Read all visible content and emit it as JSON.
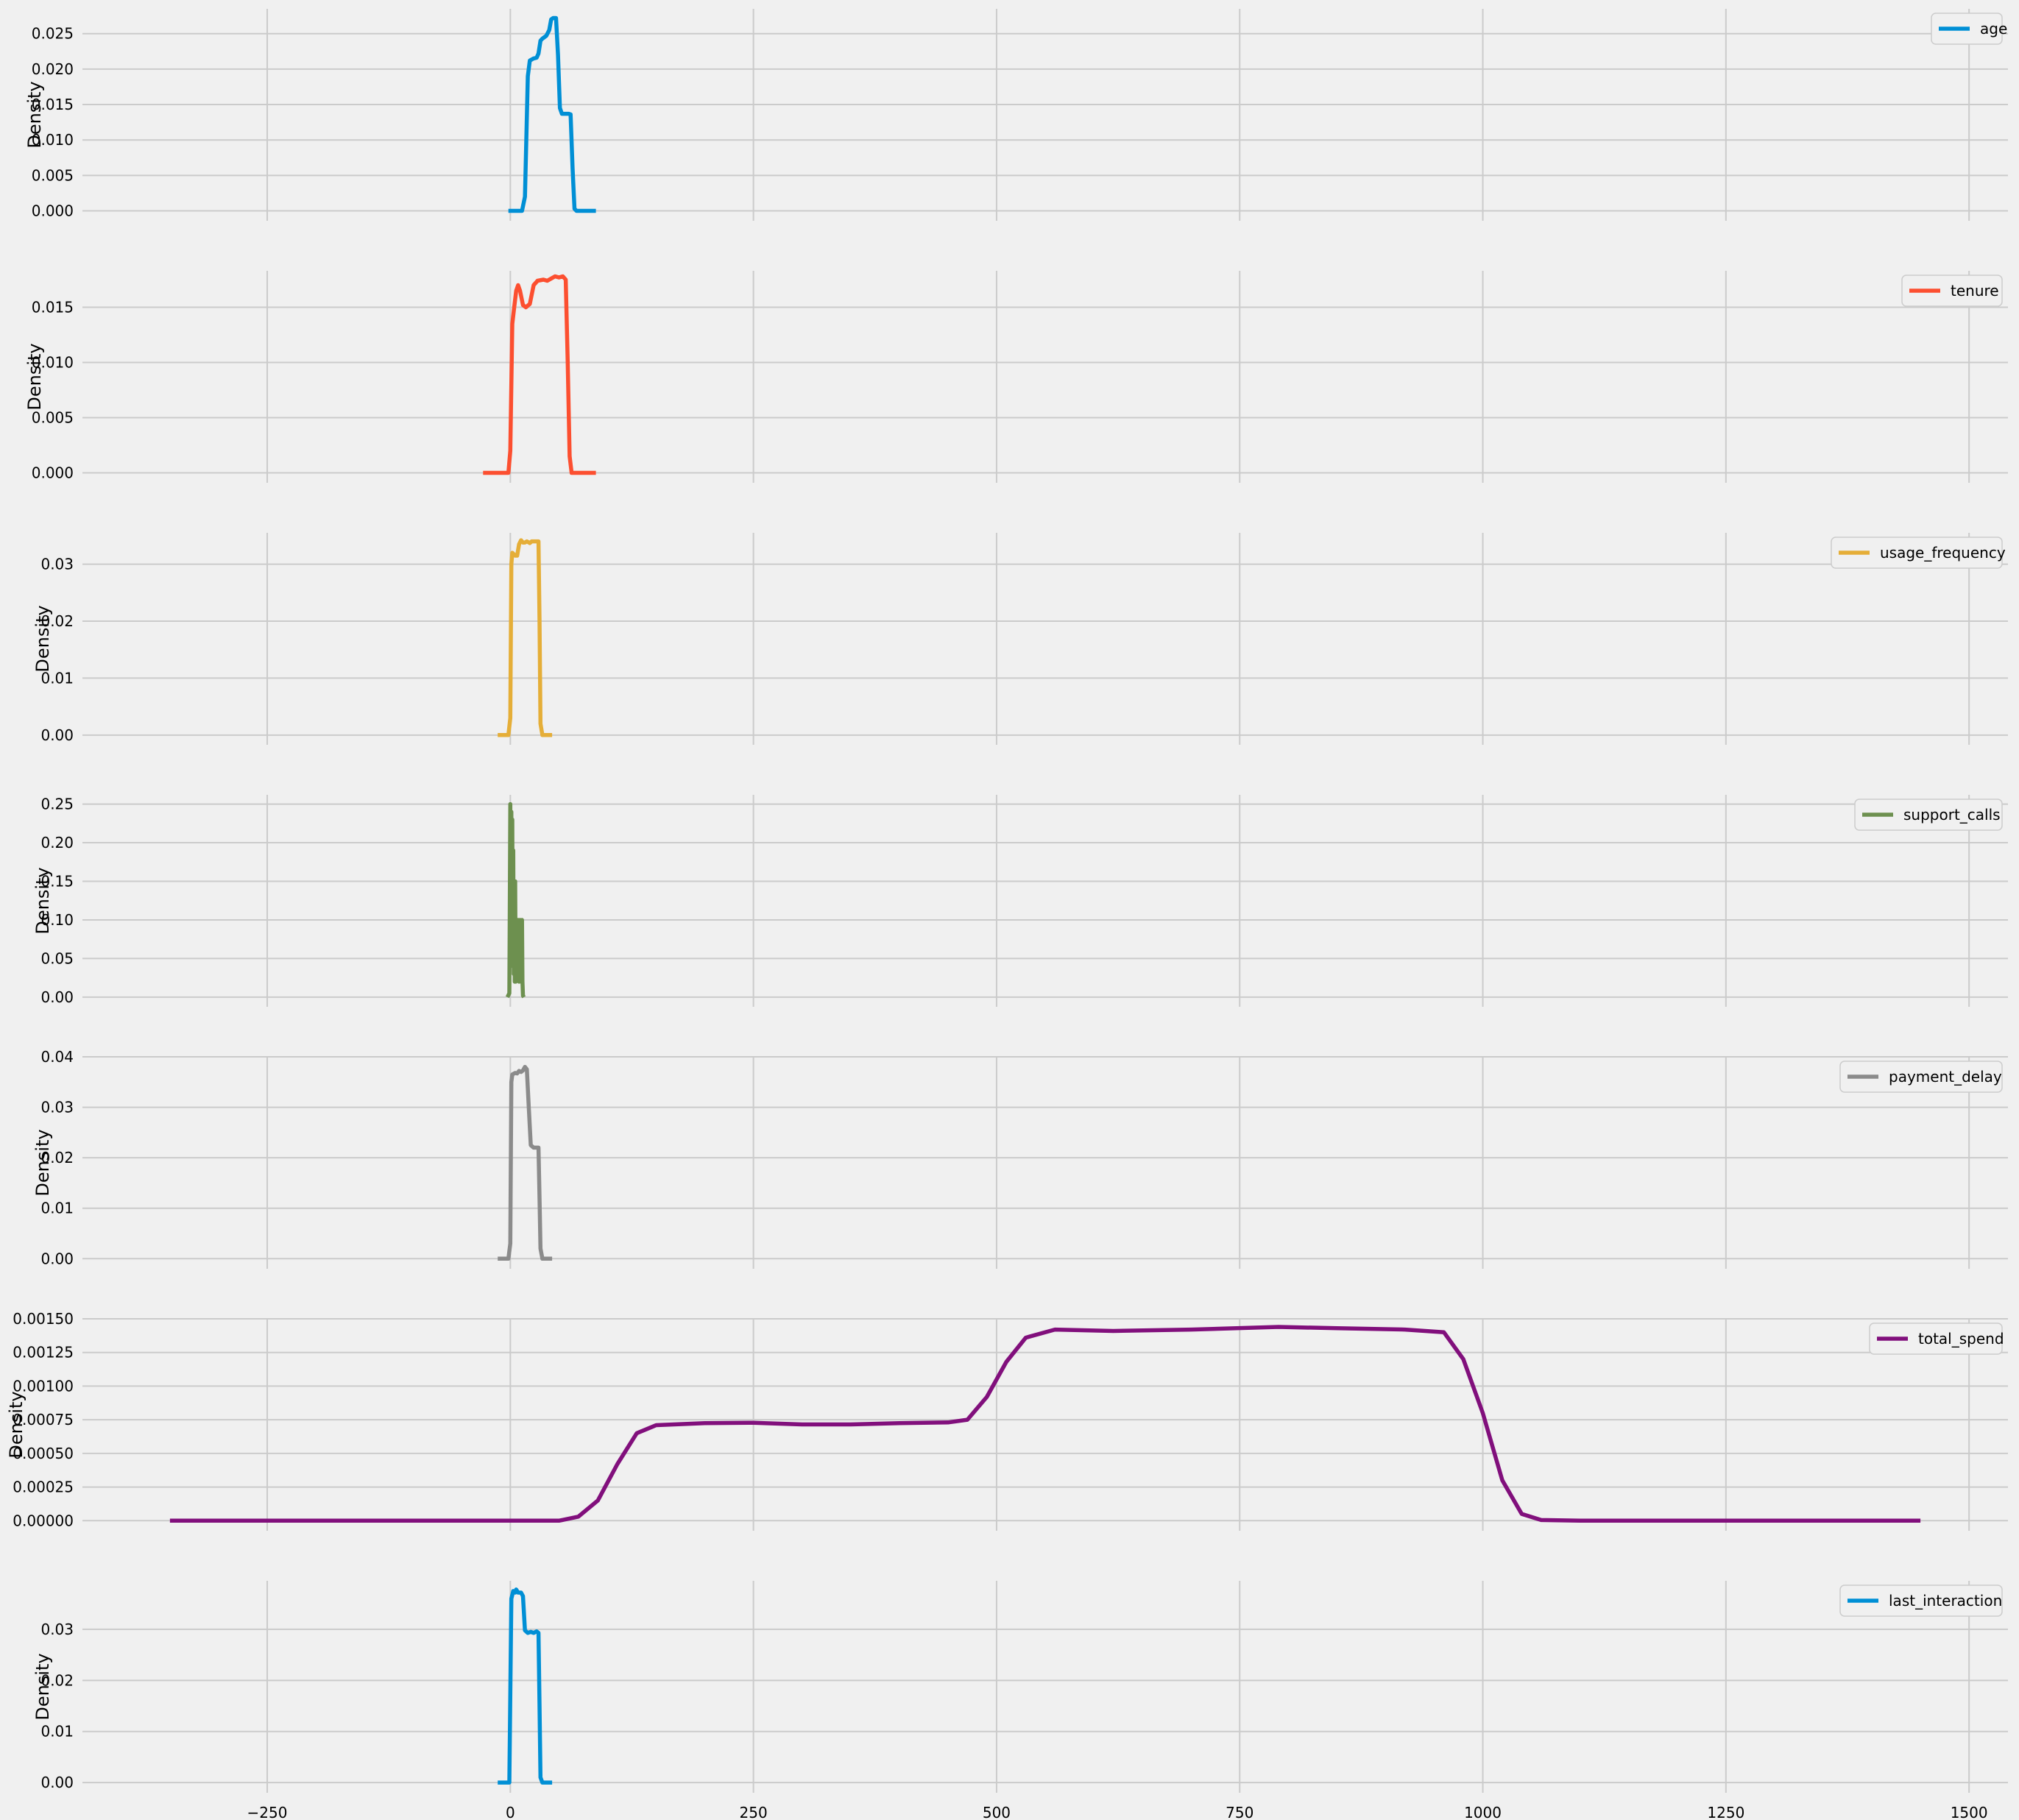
{
  "chart_data": {
    "type": "line",
    "figure_style": "fivethirtyeight",
    "grid": true,
    "legend_placement": "upper right",
    "shared_x": {
      "xlim": [
        -440,
        1540
      ],
      "ticks": [
        -250,
        0,
        250,
        500,
        750,
        1000,
        1250,
        1500
      ],
      "tick_labels": [
        "−250",
        "0",
        "250",
        "500",
        "750",
        "1000",
        "1250",
        "1500"
      ]
    },
    "panels": [
      {
        "name": "age",
        "color": "#008fd5",
        "ylabel": "Density",
        "ylim": [
          -0.0014,
          0.0285
        ],
        "yticks": [
          0.0,
          0.005,
          0.01,
          0.015,
          0.02,
          0.025
        ],
        "ytick_labels": [
          "0.000",
          "0.005",
          "0.010",
          "0.015",
          "0.020",
          "0.025"
        ],
        "points": [
          [
            -2,
            0
          ],
          [
            12,
            0
          ],
          [
            15,
            0.002
          ],
          [
            18,
            0.019
          ],
          [
            20,
            0.0212
          ],
          [
            24,
            0.0215
          ],
          [
            27,
            0.0216
          ],
          [
            29,
            0.0222
          ],
          [
            31,
            0.024
          ],
          [
            33,
            0.0243
          ],
          [
            37,
            0.0247
          ],
          [
            40,
            0.0255
          ],
          [
            42,
            0.027
          ],
          [
            44,
            0.0272
          ],
          [
            47,
            0.0272
          ],
          [
            49,
            0.022
          ],
          [
            51,
            0.0145
          ],
          [
            53,
            0.0137
          ],
          [
            57,
            0.0137
          ],
          [
            60,
            0.0137
          ],
          [
            62,
            0.0136
          ],
          [
            64,
            0.006
          ],
          [
            66,
            0.0003
          ],
          [
            68,
            0
          ],
          [
            88,
            0
          ]
        ]
      },
      {
        "name": "tenure",
        "color": "#fc4f30",
        "ylabel": "Density",
        "ylim": [
          -0.0009,
          0.0183
        ],
        "yticks": [
          0.0,
          0.005,
          0.01,
          0.015
        ],
        "ytick_labels": [
          "0.000",
          "0.005",
          "0.010",
          "0.015"
        ],
        "points": [
          [
            -28,
            0
          ],
          [
            -2,
            0
          ],
          [
            0,
            0.002
          ],
          [
            2,
            0.0135
          ],
          [
            4,
            0.015
          ],
          [
            6,
            0.0165
          ],
          [
            8,
            0.017
          ],
          [
            10,
            0.0165
          ],
          [
            13,
            0.0152
          ],
          [
            16,
            0.015
          ],
          [
            20,
            0.0153
          ],
          [
            24,
            0.017
          ],
          [
            28,
            0.0174
          ],
          [
            34,
            0.0175
          ],
          [
            38,
            0.0174
          ],
          [
            42,
            0.0176
          ],
          [
            46,
            0.0178
          ],
          [
            50,
            0.0177
          ],
          [
            54,
            0.0178
          ],
          [
            57,
            0.0175
          ],
          [
            59,
            0.01
          ],
          [
            61,
            0.0015
          ],
          [
            63,
            0
          ],
          [
            88,
            0
          ]
        ]
      },
      {
        "name": "usage_frequency",
        "color": "#e5ae38",
        "ylabel": "Density",
        "ylim": [
          -0.0017,
          0.0355
        ],
        "yticks": [
          0.0,
          0.01,
          0.02,
          0.03
        ],
        "ytick_labels": [
          "0.00",
          "0.01",
          "0.02",
          "0.03"
        ],
        "points": [
          [
            -13,
            0
          ],
          [
            -2,
            0
          ],
          [
            0,
            0.003
          ],
          [
            1,
            0.03
          ],
          [
            2,
            0.032
          ],
          [
            5,
            0.0315
          ],
          [
            7,
            0.0315
          ],
          [
            9,
            0.0335
          ],
          [
            11,
            0.0342
          ],
          [
            13,
            0.0338
          ],
          [
            15,
            0.0338
          ],
          [
            17,
            0.034
          ],
          [
            20,
            0.0337
          ],
          [
            22,
            0.034
          ],
          [
            25,
            0.034
          ],
          [
            29,
            0.034
          ],
          [
            30,
            0.02
          ],
          [
            31,
            0.002
          ],
          [
            33,
            0
          ],
          [
            43,
            0
          ]
        ]
      },
      {
        "name": "support_calls",
        "color": "#6d904f",
        "ylabel": "Density",
        "ylim": [
          -0.0125,
          0.262
        ],
        "yticks": [
          0.0,
          0.05,
          0.1,
          0.15,
          0.2,
          0.25
        ],
        "ytick_labels": [
          "0.00",
          "0.05",
          "0.10",
          "0.15",
          "0.20",
          "0.25"
        ],
        "points": [
          [
            -3,
            0
          ],
          [
            -1,
            0.005
          ],
          [
            0,
            0.25
          ],
          [
            0.5,
            0.1
          ],
          [
            1,
            0.24
          ],
          [
            1.5,
            0.08
          ],
          [
            2,
            0.23
          ],
          [
            2.5,
            0.04
          ],
          [
            3,
            0.19
          ],
          [
            3.5,
            0.03
          ],
          [
            4,
            0.15
          ],
          [
            4.5,
            0.02
          ],
          [
            5,
            0.15
          ],
          [
            5.5,
            0.02
          ],
          [
            6,
            0.1
          ],
          [
            7,
            0.03
          ],
          [
            8,
            0.1
          ],
          [
            9,
            0.02
          ],
          [
            10,
            0.1
          ],
          [
            11,
            0.02
          ],
          [
            12,
            0.1
          ],
          [
            12.5,
            0.02
          ],
          [
            13,
            0.002
          ],
          [
            14,
            0
          ]
        ]
      },
      {
        "name": "payment_delay",
        "color": "#8b8b8b",
        "ylabel": "Density",
        "ylim": [
          -0.002,
          0.04
        ],
        "yticks": [
          0.0,
          0.01,
          0.02,
          0.03,
          0.04
        ],
        "ytick_labels": [
          "0.00",
          "0.01",
          "0.02",
          "0.03",
          "0.04"
        ],
        "points": [
          [
            -13,
            0
          ],
          [
            -2,
            0
          ],
          [
            0,
            0.003
          ],
          [
            1,
            0.035
          ],
          [
            2,
            0.0365
          ],
          [
            5,
            0.0368
          ],
          [
            7,
            0.0367
          ],
          [
            9,
            0.0372
          ],
          [
            11,
            0.037
          ],
          [
            13,
            0.0373
          ],
          [
            15,
            0.038
          ],
          [
            17,
            0.0375
          ],
          [
            19,
            0.03
          ],
          [
            21,
            0.0225
          ],
          [
            24,
            0.022
          ],
          [
            27,
            0.022
          ],
          [
            29,
            0.022
          ],
          [
            30,
            0.012
          ],
          [
            31,
            0.002
          ],
          [
            33,
            0
          ],
          [
            43,
            0
          ]
        ]
      },
      {
        "name": "total_spend",
        "color": "#810f7c",
        "ylabel": "Density",
        "ylim": [
          -7.5e-05,
          0.0015
        ],
        "yticks": [
          0.0,
          0.00025,
          0.0005,
          0.00075,
          0.001,
          0.00125,
          0.0015
        ],
        "ytick_labels": [
          "0.00000",
          "0.00025",
          "0.00050",
          "0.00075",
          "0.00100",
          "0.00125",
          "0.00150"
        ],
        "points": [
          [
            -350,
            0
          ],
          [
            50,
            0
          ],
          [
            70,
            3e-05
          ],
          [
            90,
            0.00015
          ],
          [
            110,
            0.00042
          ],
          [
            130,
            0.00065
          ],
          [
            150,
            0.00071
          ],
          [
            200,
            0.000725
          ],
          [
            250,
            0.000728
          ],
          [
            300,
            0.000715
          ],
          [
            350,
            0.000715
          ],
          [
            400,
            0.000725
          ],
          [
            450,
            0.00073
          ],
          [
            470,
            0.00075
          ],
          [
            490,
            0.00092
          ],
          [
            510,
            0.00118
          ],
          [
            530,
            0.00136
          ],
          [
            560,
            0.00142
          ],
          [
            620,
            0.00141
          ],
          [
            700,
            0.00142
          ],
          [
            790,
            0.00144
          ],
          [
            850,
            0.00143
          ],
          [
            920,
            0.00142
          ],
          [
            960,
            0.0014
          ],
          [
            980,
            0.0012
          ],
          [
            1000,
            0.0008
          ],
          [
            1020,
            0.0003
          ],
          [
            1040,
            5e-05
          ],
          [
            1060,
            5e-06
          ],
          [
            1100,
            0
          ],
          [
            1450,
            0
          ]
        ]
      },
      {
        "name": "last_interaction",
        "color": "#008fd5",
        "ylabel": "Density",
        "ylim": [
          -0.002,
          0.0395
        ],
        "yticks": [
          0.0,
          0.01,
          0.02,
          0.03
        ],
        "ytick_labels": [
          "0.00",
          "0.01",
          "0.02",
          "0.03"
        ],
        "points": [
          [
            -13,
            0
          ],
          [
            -1,
            0
          ],
          [
            1,
            0.036
          ],
          [
            3,
            0.0375
          ],
          [
            5,
            0.0372
          ],
          [
            6,
            0.0378
          ],
          [
            8,
            0.0372
          ],
          [
            11,
            0.0372
          ],
          [
            13,
            0.0365
          ],
          [
            15,
            0.0298
          ],
          [
            18,
            0.0293
          ],
          [
            21,
            0.0295
          ],
          [
            24,
            0.0293
          ],
          [
            27,
            0.0296
          ],
          [
            29,
            0.0293
          ],
          [
            30,
            0.015
          ],
          [
            31,
            0.001
          ],
          [
            33,
            0
          ],
          [
            43,
            0
          ]
        ]
      }
    ]
  }
}
